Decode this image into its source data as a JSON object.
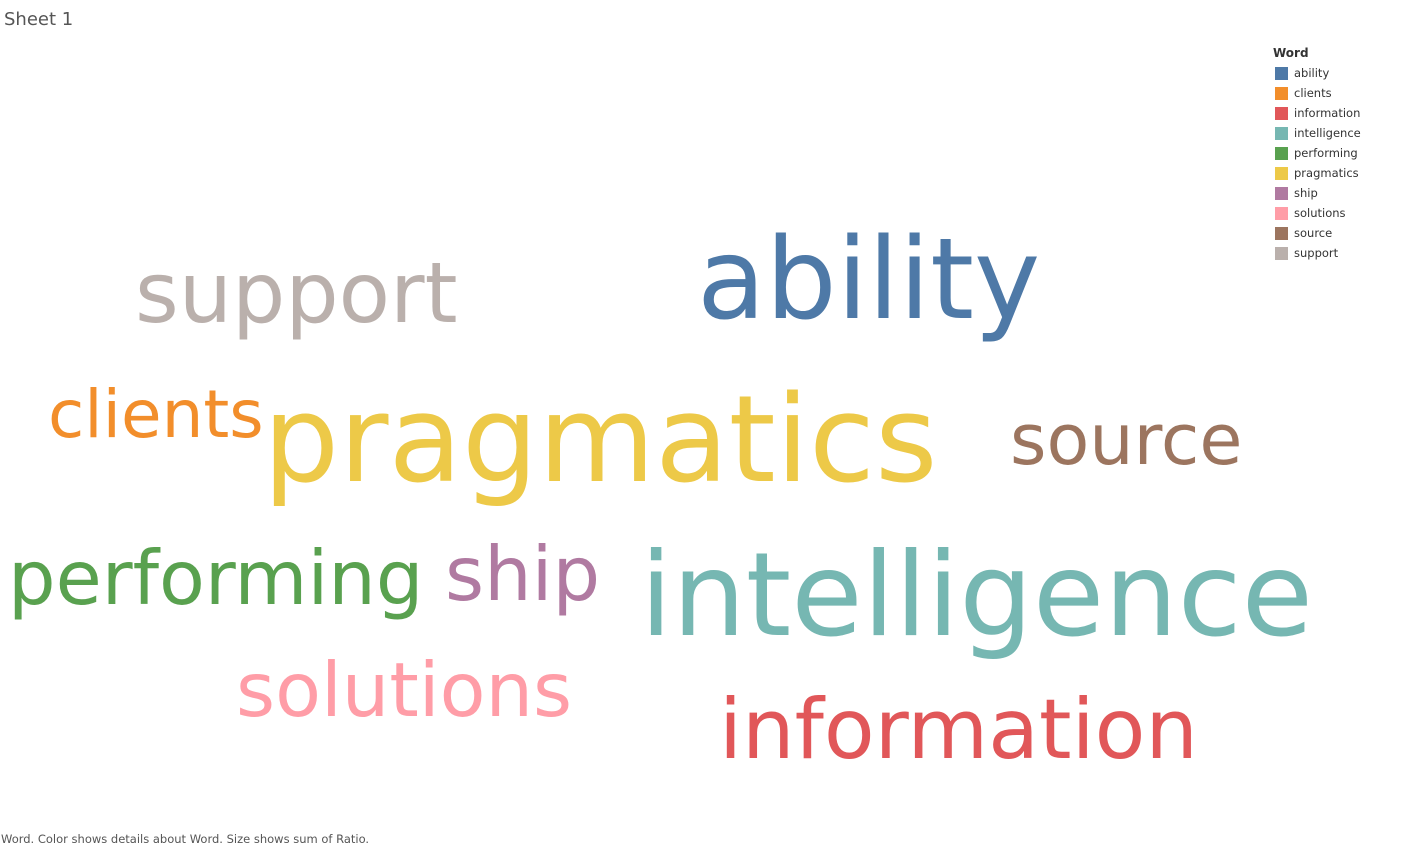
{
  "sheet": {
    "title": "Sheet 1",
    "caption": "Word.  Color shows details about Word.  Size shows sum of Ratio."
  },
  "chart_data": {
    "type": "word-cloud",
    "legend_title": "Word",
    "legend_position": "top-right",
    "words": [
      {
        "word": "ability",
        "color": "#4e79a7"
      },
      {
        "word": "clients",
        "color": "#f28e2b"
      },
      {
        "word": "information",
        "color": "#e15759"
      },
      {
        "word": "intelligence",
        "color": "#76b7b2"
      },
      {
        "word": "performing",
        "color": "#59a14f"
      },
      {
        "word": "pragmatics",
        "color": "#edc948"
      },
      {
        "word": "ship",
        "color": "#b07aa1"
      },
      {
        "word": "solutions",
        "color": "#ff9da7"
      },
      {
        "word": "source",
        "color": "#9c755f"
      },
      {
        "word": "support",
        "color": "#bab0ac"
      }
    ]
  }
}
